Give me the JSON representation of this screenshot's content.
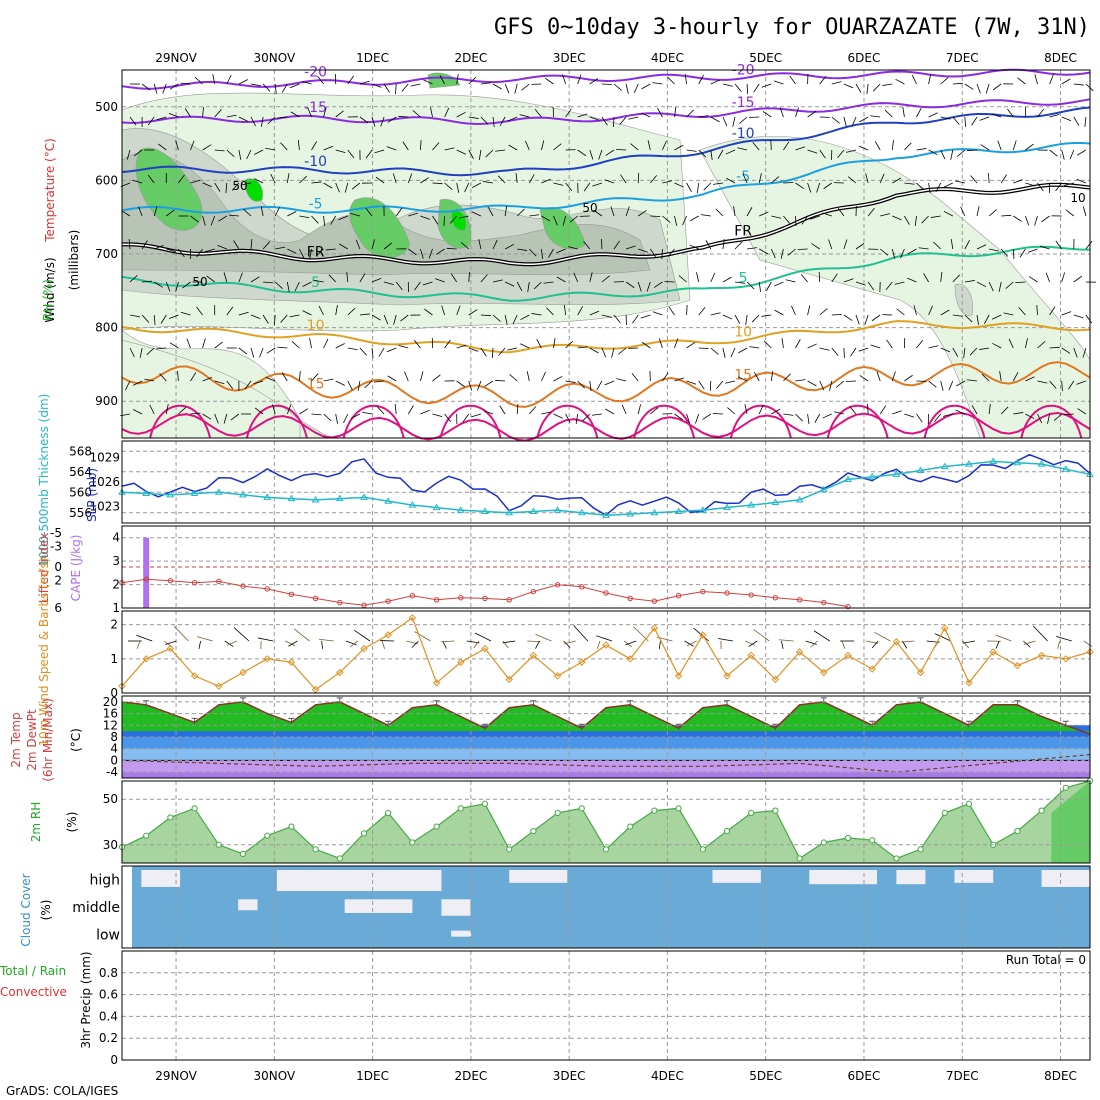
{
  "title": "GFS 0~10day 3-hourly for OUARZAZATE (7W, 31N)",
  "credit": "GrADS: COLA/IGES",
  "colors": {
    "rh_light": "#e6f4e2",
    "rh_mid": "#cfd8cd",
    "rh_dark": "#b8c4b6",
    "rh_green": "#66cc66",
    "rh_bright": "#00dd00",
    "t_m20": "#8a2be2",
    "t_m15": "#8a2be2",
    "t_m10": "#2040c0",
    "t_m5": "#1aa0e0",
    "t_5": "#20c090",
    "t_10": "#e0a020",
    "t_15": "#e07820",
    "t_20": "#e01080",
    "fr": "#000000",
    "slp": "#1a2ecf",
    "thickness": "#22b8c8",
    "lifted": "#d04040",
    "cape": "#b070f0",
    "wind10": "#e09020",
    "barbs": "#000000",
    "temp_fill": "#22bb22",
    "cloud_fill": "#6aaad6",
    "cloud_bg": "#eeeef4",
    "rh_line": "#44aa44",
    "rh_fill": "#a8d4a0"
  },
  "chart_data": [
    {
      "type": "contour",
      "panel": "upper-air",
      "x_ticks": [
        "29NOV",
        "30NOV",
        "1DEC",
        "2DEC",
        "3DEC",
        "4DEC",
        "5DEC",
        "6DEC",
        "7DEC",
        "8DEC"
      ],
      "ylim": [
        950,
        450
      ],
      "y_ticks": [
        500,
        600,
        700,
        800,
        900
      ],
      "ylabel_parts": [
        "RH (%)",
        "Temperature (°C)",
        "Wind (m/s)",
        "(millibars)"
      ],
      "temperature_contours": [
        {
          "label": "-20",
          "level": -20,
          "days": [
            0,
            2,
            4,
            6,
            8,
            10
          ],
          "p": [
            472,
            468,
            462,
            460,
            456,
            452
          ]
        },
        {
          "label": "-15",
          "level": -15,
          "days": [
            0,
            2,
            4,
            6,
            8,
            10
          ],
          "p": [
            518,
            516,
            520,
            510,
            498,
            492
          ]
        },
        {
          "label": "-10",
          "level": -10,
          "days": [
            0,
            2,
            4,
            6,
            8,
            10
          ],
          "p": [
            585,
            586,
            590,
            560,
            520,
            505
          ]
        },
        {
          "label": "-5",
          "level": -5,
          "days": [
            0,
            2,
            4,
            6,
            8,
            10
          ],
          "p": [
            640,
            640,
            638,
            620,
            566,
            552
          ]
        },
        {
          "label": "FR",
          "level": 0,
          "days": [
            0,
            2,
            4,
            6,
            8,
            10
          ],
          "p": [
            690,
            705,
            712,
            695,
            618,
            608
          ]
        },
        {
          "label": "5",
          "level": 5,
          "days": [
            0,
            2,
            4,
            6,
            8,
            10
          ],
          "p": [
            735,
            750,
            760,
            750,
            705,
            690
          ]
        },
        {
          "label": "10",
          "level": 10,
          "days": [
            0,
            2,
            4,
            6,
            8,
            10
          ],
          "p": [
            800,
            812,
            830,
            820,
            795,
            800
          ]
        },
        {
          "label": "15",
          "level": 15,
          "days": [
            0,
            2,
            4,
            6,
            8,
            10
          ],
          "p": [
            860,
            880,
            895,
            880,
            865,
            860
          ]
        },
        {
          "label": "",
          "level": 20,
          "days": [
            0,
            2,
            4,
            6,
            8,
            10
          ],
          "p": [
            930,
            935,
            940,
            935,
            930,
            930
          ]
        }
      ],
      "rh_labels": [
        "50",
        "50",
        "50",
        "10"
      ]
    },
    {
      "type": "line",
      "panel": "slp-thickness",
      "x_ticks": [
        "29NOV",
        "30NOV",
        "1DEC",
        "2DEC",
        "3DEC",
        "4DEC",
        "5DEC",
        "6DEC",
        "7DEC",
        "8DEC"
      ],
      "left_axis": {
        "label": "1000-500mb Thickness (dm)",
        "ticks": [
          556,
          560,
          564,
          568
        ],
        "range": [
          554,
          570
        ]
      },
      "right_axis": {
        "label": "SLP (mb)",
        "ticks": [
          1023,
          1026,
          1029
        ],
        "range": [
          1021,
          1031
        ]
      },
      "series": [
        {
          "name": "SLP (mb)",
          "axis": "right",
          "days": [
            0,
            0.5,
            1,
            1.5,
            2,
            2.5,
            3,
            3.5,
            4,
            4.5,
            5,
            5.5,
            6,
            6.5,
            7,
            7.5,
            8,
            8.5,
            9,
            9.5,
            10
          ],
          "values": [
            1025.5,
            1024.5,
            1026.0,
            1027.0,
            1026.5,
            1028.5,
            1025.0,
            1026.5,
            1023.0,
            1024.5,
            1022.5,
            1024.0,
            1022.5,
            1024.5,
            1025.0,
            1026.5,
            1027.0,
            1026.0,
            1028.0,
            1029.0,
            1027.5
          ]
        },
        {
          "name": "1000-500mb Thickness (dm)",
          "axis": "left",
          "days": [
            0,
            0.5,
            1,
            1.5,
            2,
            2.5,
            3,
            3.5,
            4,
            4.5,
            5,
            5.5,
            6,
            6.5,
            7,
            7.5,
            8,
            8.5,
            9,
            9.5,
            10
          ],
          "values": [
            560.0,
            559.5,
            560.0,
            559.0,
            558.5,
            559.0,
            557.5,
            556.5,
            556.0,
            556.5,
            555.5,
            556.0,
            556.5,
            557.5,
            558.5,
            562.5,
            563.5,
            565.0,
            566.0,
            565.5,
            563.5
          ]
        }
      ]
    },
    {
      "type": "line",
      "panel": "stability",
      "left_axis": {
        "label": "Lifted Index",
        "ticks": [
          6,
          2,
          0,
          -3,
          -5
        ],
        "range": [
          6,
          -6
        ]
      },
      "right_axis": {
        "label": "CAPE (J/kg)",
        "ticks": [
          1,
          2,
          3,
          4
        ],
        "range": [
          1,
          4.5
        ]
      },
      "series": [
        {
          "name": "Lifted Index",
          "days": [
            0,
            0.25,
            0.5,
            0.75,
            1,
            1.25,
            1.5,
            1.75,
            2,
            2.25,
            2.5,
            2.75,
            3,
            3.25,
            3.5,
            3.75,
            4,
            4.25,
            4.5,
            4.75,
            5,
            5.25,
            5.5,
            5.75,
            6,
            6.25,
            6.5,
            6.75,
            7,
            7.25,
            7.5
          ],
          "values": [
            2.3,
            1.8,
            2.0,
            2.3,
            2.1,
            2.8,
            3.2,
            4.0,
            4.6,
            5.2,
            5.6,
            5.0,
            4.2,
            4.8,
            4.5,
            4.6,
            4.8,
            3.6,
            2.6,
            2.9,
            3.8,
            4.6,
            5.0,
            4.2,
            3.6,
            3.8,
            4.1,
            4.5,
            4.8,
            5.2,
            5.8
          ]
        },
        {
          "name": "CAPE (J/kg)",
          "type": "bar",
          "days": [
            0.25
          ],
          "values": [
            4.0
          ]
        }
      ]
    },
    {
      "type": "line",
      "panel": "wind10m",
      "ylabel": "10m Wind Speed & Barbs (m/s)",
      "y_ticks": [
        0,
        1,
        2
      ],
      "ylim": [
        0,
        2.4
      ],
      "series": [
        {
          "name": "10m Wind Speed",
          "days": [
            0,
            0.25,
            0.5,
            0.75,
            1,
            1.25,
            1.5,
            1.75,
            2,
            2.25,
            2.5,
            2.75,
            3,
            3.25,
            3.5,
            3.75,
            4,
            4.25,
            4.5,
            4.75,
            5,
            5.25,
            5.5,
            5.75,
            6,
            6.25,
            6.5,
            6.75,
            7,
            7.25,
            7.5,
            7.75,
            8,
            8.25,
            8.5,
            8.75,
            9,
            9.25,
            9.5,
            9.75,
            10
          ],
          "values": [
            0.2,
            1.0,
            1.3,
            0.5,
            0.2,
            0.6,
            1.0,
            0.9,
            0.1,
            0.6,
            1.3,
            1.7,
            2.2,
            0.3,
            0.9,
            1.3,
            0.4,
            1.1,
            0.5,
            0.9,
            1.4,
            1.0,
            1.9,
            0.5,
            1.7,
            0.5,
            1.1,
            0.4,
            1.2,
            0.6,
            1.1,
            0.7,
            1.5,
            0.6,
            1.9,
            0.3,
            1.2,
            0.8,
            1.1,
            1.0,
            1.2
          ]
        }
      ]
    },
    {
      "type": "area",
      "panel": "temperature",
      "ylabel_parts": [
        "2m Temp",
        "2m DewPt",
        "(6hr Min/Max)",
        "(°C)"
      ],
      "y_ticks": [
        -4,
        0,
        4,
        8,
        12,
        16,
        20
      ],
      "ylim": [
        -6,
        22
      ],
      "series": [
        {
          "name": "2m Temp",
          "days": [
            0,
            0.25,
            0.5,
            0.75,
            1,
            1.25,
            1.5,
            1.75,
            2,
            2.25,
            2.5,
            2.75,
            3,
            3.25,
            3.5,
            3.75,
            4,
            4.25,
            4.5,
            4.75,
            5,
            5.25,
            5.5,
            5.75,
            6,
            6.25,
            6.5,
            6.75,
            7,
            7.25,
            7.5,
            7.75,
            8,
            8.25,
            8.5,
            8.75,
            9,
            9.25,
            9.5,
            9.75,
            10
          ],
          "values": [
            20,
            19,
            16,
            13,
            19,
            20,
            16,
            13,
            19,
            20,
            16,
            12,
            18,
            19,
            15,
            11,
            18,
            19,
            15,
            11,
            18,
            19,
            15,
            11,
            18,
            19,
            15,
            11,
            19,
            20,
            16,
            12,
            19,
            20,
            16,
            12,
            19,
            19,
            15,
            12,
            9
          ]
        },
        {
          "name": "2m DewPt",
          "days": [
            0,
            1,
            2,
            3,
            4,
            5,
            6,
            7,
            8,
            9,
            10
          ],
          "values": [
            0,
            -1,
            -2,
            -1,
            -1,
            -2,
            -2,
            -1,
            -4,
            -1,
            2
          ]
        }
      ],
      "bands": [
        {
          "from": 8,
          "to": 12,
          "color": "#2a6ee0"
        },
        {
          "from": 4,
          "to": 8,
          "color": "#4b96e8"
        },
        {
          "from": 0,
          "to": 4,
          "color": "#86bdf0"
        },
        {
          "from": -4,
          "to": 0,
          "color": "#c49af0"
        },
        {
          "from": -6,
          "to": -4,
          "color": "#a87ae8"
        }
      ]
    },
    {
      "type": "area",
      "panel": "rh2m",
      "ylabel_parts": [
        "2m RH",
        "(%)"
      ],
      "y_ticks": [
        30,
        50
      ],
      "ylim": [
        22,
        58
      ],
      "series": [
        {
          "name": "2m RH",
          "days": [
            0,
            0.25,
            0.5,
            0.75,
            1,
            1.25,
            1.5,
            1.75,
            2,
            2.25,
            2.5,
            2.75,
            3,
            3.25,
            3.5,
            3.75,
            4,
            4.25,
            4.5,
            4.75,
            5,
            5.25,
            5.5,
            5.75,
            6,
            6.25,
            6.5,
            6.75,
            7,
            7.25,
            7.5,
            7.75,
            8,
            8.25,
            8.5,
            8.75,
            9,
            9.25,
            9.5,
            9.75,
            10
          ],
          "values": [
            29,
            34,
            42,
            46,
            30,
            26,
            34,
            38,
            28,
            24,
            35,
            44,
            31,
            38,
            46,
            48,
            28,
            36,
            44,
            46,
            28,
            38,
            45,
            46,
            28,
            36,
            44,
            45,
            24,
            31,
            33,
            32,
            24,
            28,
            44,
            48,
            30,
            36,
            45,
            55,
            58
          ]
        }
      ]
    },
    {
      "type": "heatmap",
      "panel": "cloud",
      "ylabel_parts": [
        "Cloud Cover",
        "(%)"
      ],
      "rows": [
        "high",
        "middle",
        "low"
      ],
      "y_ticks": [
        "high",
        "middle",
        "low"
      ]
    },
    {
      "type": "bar",
      "panel": "precip",
      "ylabel_parts": [
        "Total / Rain",
        "Convective",
        "3hr Precip (mm)"
      ],
      "y_ticks": [
        0,
        0.2,
        0.4,
        0.6,
        0.8
      ],
      "ylim": [
        0,
        1.0
      ],
      "run_total": "Run Total = 0",
      "x_ticks": [
        "29NOV",
        "30NOV",
        "1DEC",
        "2DEC",
        "3DEC",
        "4DEC",
        "5DEC",
        "6DEC",
        "7DEC",
        "8DEC"
      ]
    }
  ]
}
